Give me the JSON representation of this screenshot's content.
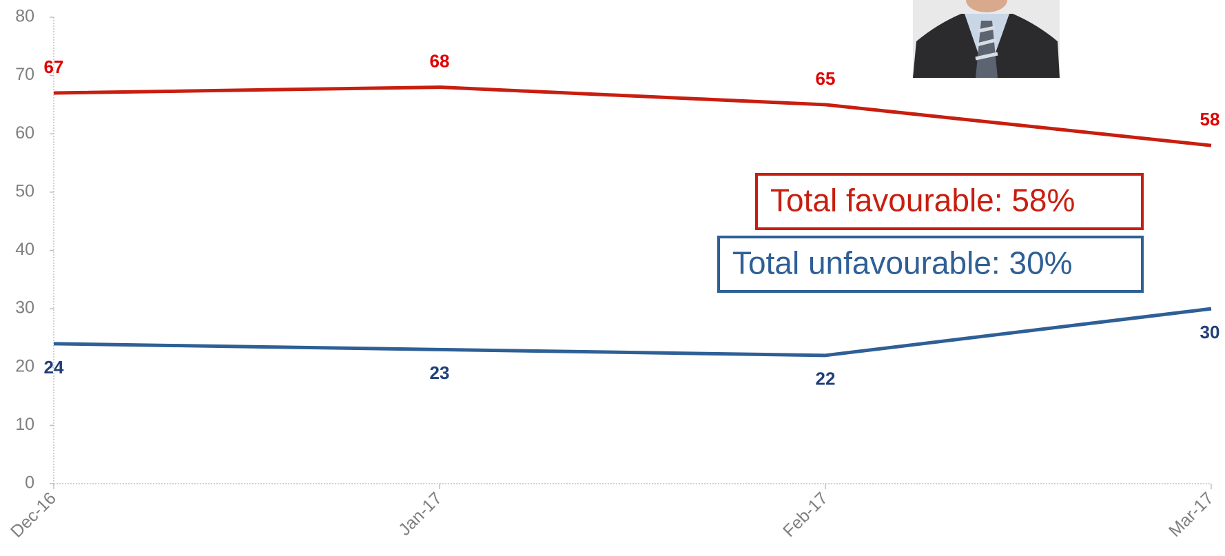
{
  "chart_data": {
    "type": "line",
    "categories": [
      "Dec-16",
      "Jan-17",
      "Feb-17",
      "Mar-17"
    ],
    "series": [
      {
        "name": "Total favourable: 58%",
        "color": "#c81e0f",
        "label_color": "#e00000",
        "values": [
          67,
          68,
          65,
          58
        ]
      },
      {
        "name": "Total unfavourable: 30%",
        "color": "#2e5f96",
        "label_color": "#1f3f77",
        "values": [
          24,
          23,
          22,
          30
        ]
      }
    ],
    "ylim": [
      0,
      80
    ],
    "yticks": [
      0,
      10,
      20,
      30,
      40,
      50,
      60,
      70,
      80
    ]
  }
}
